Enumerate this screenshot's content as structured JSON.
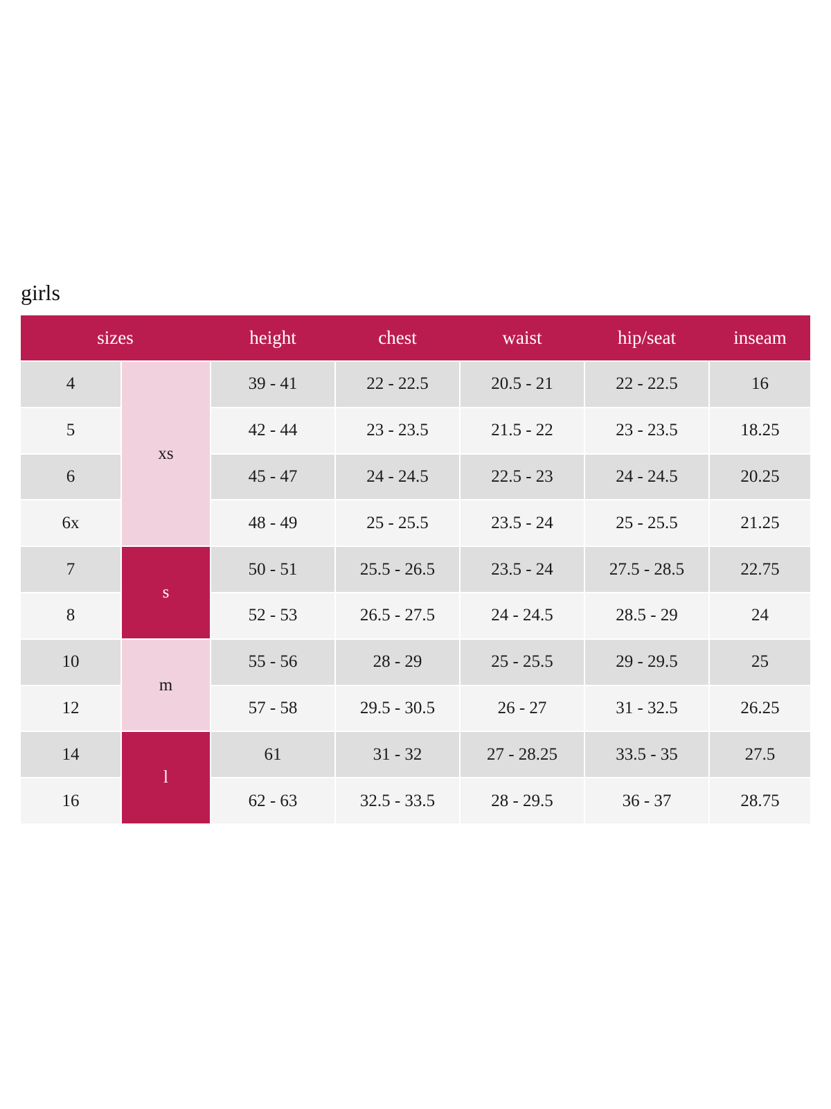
{
  "title": "girls",
  "colors": {
    "header": "#BB1C4F",
    "alpha_light": "#F2D1DE",
    "alpha_dark": "#BB1C4F",
    "row_dark": "#DEDEDE",
    "row_light": "#F4F4F4"
  },
  "headers": [
    "sizes",
    "height",
    "chest",
    "waist",
    "hip/seat",
    "inseam"
  ],
  "alpha_sizes": [
    {
      "label": "xs",
      "rows": 4,
      "style": "light"
    },
    {
      "label": "s",
      "rows": 2,
      "style": "dark"
    },
    {
      "label": "m",
      "rows": 2,
      "style": "light"
    },
    {
      "label": "l",
      "rows": 2,
      "style": "dark"
    }
  ],
  "rows": [
    {
      "size": "4",
      "height": "39 - 41",
      "chest": "22 - 22.5",
      "waist": "20.5 - 21",
      "hip": "22 - 22.5",
      "inseam": "16"
    },
    {
      "size": "5",
      "height": "42 - 44",
      "chest": "23 - 23.5",
      "waist": "21.5 - 22",
      "hip": "23 - 23.5",
      "inseam": "18.25"
    },
    {
      "size": "6",
      "height": "45 - 47",
      "chest": "24 - 24.5",
      "waist": "22.5 - 23",
      "hip": "24 - 24.5",
      "inseam": "20.25"
    },
    {
      "size": "6x",
      "height": "48 - 49",
      "chest": "25 - 25.5",
      "waist": "23.5 - 24",
      "hip": "25 - 25.5",
      "inseam": "21.25"
    },
    {
      "size": "7",
      "height": "50 - 51",
      "chest": "25.5 - 26.5",
      "waist": "23.5 - 24",
      "hip": "27.5 - 28.5",
      "inseam": "22.75"
    },
    {
      "size": "8",
      "height": "52 - 53",
      "chest": "26.5 - 27.5",
      "waist": "24 - 24.5",
      "hip": "28.5 - 29",
      "inseam": "24"
    },
    {
      "size": "10",
      "height": "55 - 56",
      "chest": "28 - 29",
      "waist": "25 - 25.5",
      "hip": "29 - 29.5",
      "inseam": "25"
    },
    {
      "size": "12",
      "height": "57 - 58",
      "chest": "29.5 - 30.5",
      "waist": "26 - 27",
      "hip": "31 - 32.5",
      "inseam": "26.25"
    },
    {
      "size": "14",
      "height": "61",
      "chest": "31 - 32",
      "waist": "27 - 28.25",
      "hip": "33.5 - 35",
      "inseam": "27.5"
    },
    {
      "size": "16",
      "height": "62 - 63",
      "chest": "32.5 - 33.5",
      "waist": "28 - 29.5",
      "hip": "36 - 37",
      "inseam": "28.75"
    }
  ]
}
